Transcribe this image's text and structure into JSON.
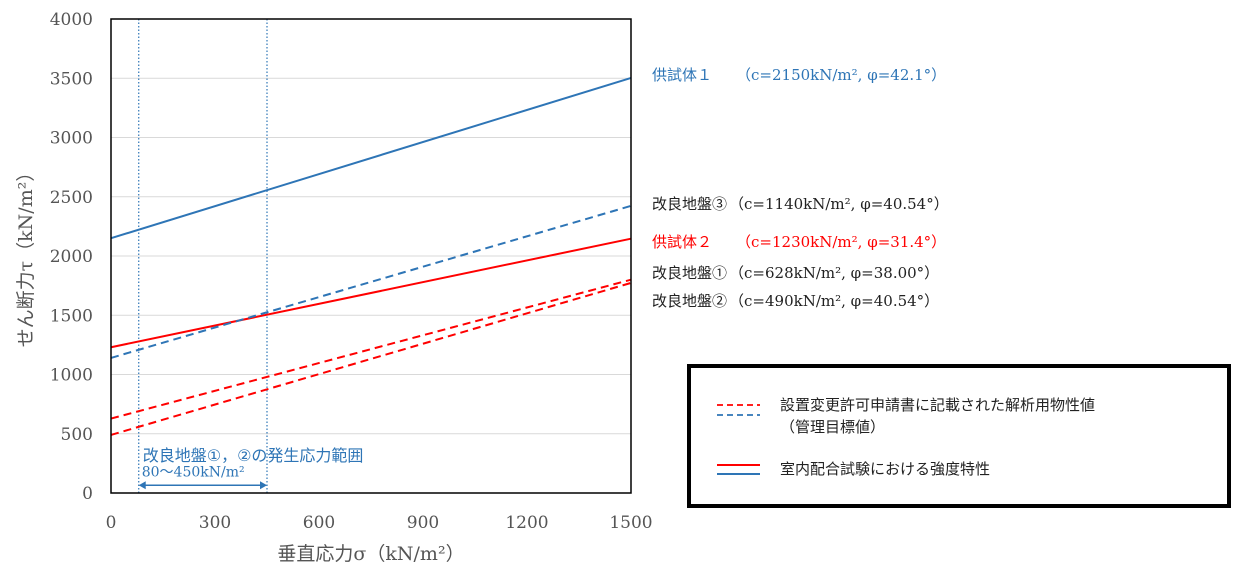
{
  "chart_data": {
    "type": "line",
    "xlabel": "垂直応力σ（kN/m²）",
    "ylabel": "せん断力τ（kN/m²）",
    "xlim": [
      0,
      1500
    ],
    "ylim": [
      0,
      4000
    ],
    "x_ticks": [
      "0",
      "300",
      "600",
      "900",
      "1200",
      "1500"
    ],
    "y_ticks": [
      "0",
      "500",
      "1000",
      "1500",
      "2000",
      "2500",
      "3000",
      "3500",
      "4000"
    ],
    "grid": "horizontal",
    "series": [
      {
        "name": "供試体１",
        "params": "（c=2150kN/m², φ=42.1°）",
        "color": "#2e75b6",
        "style": "solid",
        "x": [
          0,
          1500
        ],
        "y": [
          2150,
          3503
        ]
      },
      {
        "name": "改良地盤③",
        "params": "（c=1140kN/m², φ=40.54°）",
        "color": "#2e75b6",
        "style": "dashed",
        "x": [
          0,
          1500
        ],
        "y": [
          1140,
          2423
        ]
      },
      {
        "name": "供試体２",
        "params": "（c=1230kN/m², φ=31.4°）",
        "color": "#ff0000",
        "style": "solid",
        "x": [
          0,
          1500
        ],
        "y": [
          1230,
          2146
        ]
      },
      {
        "name": "改良地盤①",
        "params": "（c=628kN/m², φ=38.00°）",
        "color": "#ff0000",
        "style": "dashed",
        "x": [
          0,
          1500
        ],
        "y": [
          628,
          1800
        ]
      },
      {
        "name": "改良地盤②",
        "params": "（c=490kN/m², φ=40.54°）",
        "color": "#ff0000",
        "style": "dashed",
        "x": [
          0,
          1500
        ],
        "y": [
          490,
          1773
        ]
      }
    ],
    "range_band": {
      "x_from": 80,
      "x_to": 450,
      "label": "改良地盤①，②の発生応力範囲",
      "sublabel": "80～450kN/m²",
      "color": "#2e75b6"
    },
    "legend": {
      "placement": "bottom-right",
      "items": [
        {
          "line_style": "dashed",
          "colors": [
            "#ff0000",
            "#2e75b6"
          ],
          "text_lines": [
            "設置変更許可申請書に記載された解析用物性値",
            "（管理目標値）"
          ]
        },
        {
          "line_style": "solid",
          "colors": [
            "#ff0000",
            "#2e75b6"
          ],
          "text_lines": [
            "室内配合試験における強度特性"
          ]
        }
      ]
    }
  }
}
